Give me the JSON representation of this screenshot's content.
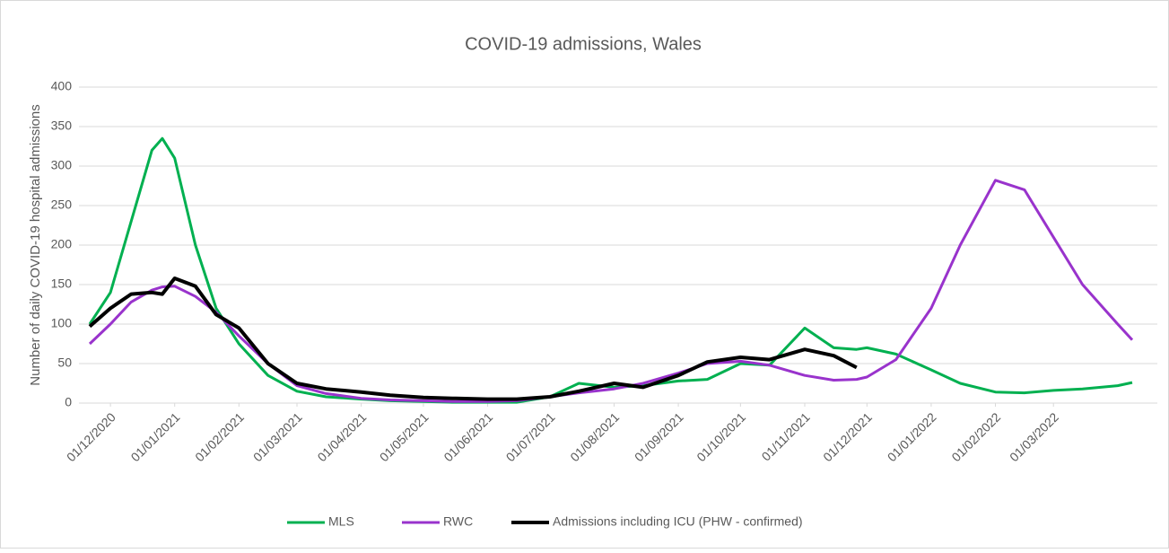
{
  "chart_data": {
    "type": "line",
    "title": "COVID-19 admissions, Wales",
    "y_label": "Number of daily COVID-19 hospital admissions",
    "x": [
      "21/11/2020",
      "01/12/2020",
      "11/12/2020",
      "21/12/2020",
      "26/12/2020",
      "01/01/2021",
      "11/01/2021",
      "21/01/2021",
      "01/02/2021",
      "15/02/2021",
      "01/03/2021",
      "15/03/2021",
      "01/04/2021",
      "15/04/2021",
      "01/05/2021",
      "15/05/2021",
      "01/06/2021",
      "15/06/2021",
      "01/07/2021",
      "15/07/2021",
      "01/08/2021",
      "15/08/2021",
      "01/09/2021",
      "15/09/2021",
      "01/10/2021",
      "15/10/2021",
      "01/11/2021",
      "15/11/2021",
      "26/11/2021",
      "01/12/2021",
      "15/12/2021",
      "01/01/2022",
      "15/01/2022",
      "01/02/2022",
      "15/02/2022",
      "01/03/2022",
      "15/03/2022",
      "01/04/2022",
      "08/04/2022"
    ],
    "xlim": [
      "21/11/2020",
      "08/04/2022"
    ],
    "xticks": [
      "01/12/2020",
      "01/01/2021",
      "01/02/2021",
      "01/03/2021",
      "01/04/2021",
      "01/05/2021",
      "01/06/2021",
      "01/07/2021",
      "01/08/2021",
      "01/09/2021",
      "01/10/2021",
      "01/11/2021",
      "01/12/2021",
      "01/01/2022",
      "01/02/2022",
      "01/03/2022"
    ],
    "ylim": [
      0,
      400
    ],
    "yticks": [
      0,
      50,
      100,
      150,
      200,
      250,
      300,
      350,
      400
    ],
    "grid": true,
    "legend": "bottom",
    "series": [
      {
        "name": "MLS",
        "color": "#00b050",
        "values": [
          100,
          140,
          230,
          320,
          335,
          310,
          200,
          120,
          75,
          35,
          15,
          8,
          5,
          3,
          2,
          1,
          1,
          1,
          8,
          25,
          20,
          22,
          28,
          30,
          50,
          48,
          95,
          70,
          68,
          70,
          62,
          42,
          25,
          14,
          13,
          16,
          18,
          22,
          26
        ]
      },
      {
        "name": "RWC",
        "color": "#9933cc",
        "values": [
          75,
          100,
          128,
          143,
          147,
          148,
          135,
          115,
          85,
          50,
          22,
          12,
          6,
          4,
          3,
          2,
          2,
          3,
          8,
          13,
          18,
          25,
          38,
          50,
          53,
          48,
          35,
          29,
          30,
          33,
          55,
          120,
          200,
          282,
          270,
          210,
          150,
          100,
          80
        ]
      },
      {
        "name": "Admissions including ICU (PHW - confirmed)",
        "color": "#000000",
        "values": [
          97,
          120,
          138,
          140,
          138,
          158,
          148,
          112,
          95,
          50,
          25,
          18,
          14,
          10,
          7,
          6,
          5,
          5,
          8,
          15,
          25,
          20,
          35,
          52,
          58,
          55,
          68,
          60,
          45,
          null,
          null,
          null,
          null,
          null,
          null,
          null,
          null,
          null,
          null
        ]
      }
    ]
  }
}
